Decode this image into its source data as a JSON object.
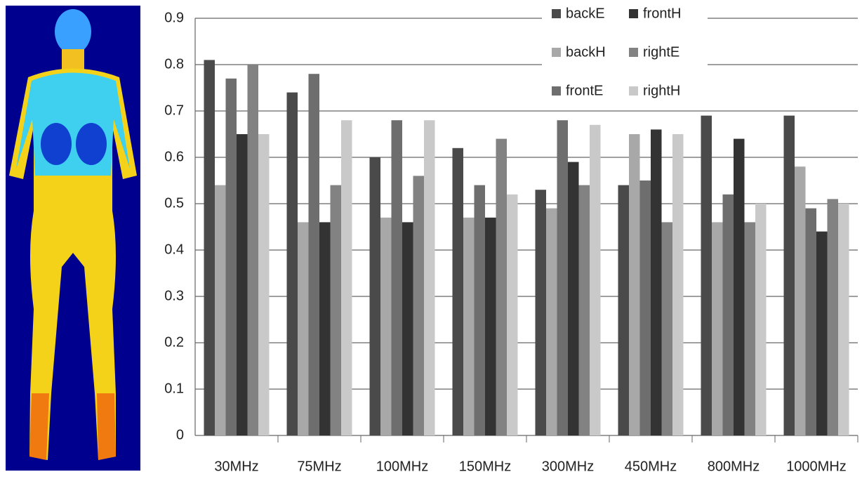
{
  "chart_data": {
    "type": "bar",
    "categories": [
      "30MHz",
      "75MHz",
      "100MHz",
      "150MHz",
      "300MHz",
      "450MHz",
      "800MHz",
      "1000MHz"
    ],
    "series": [
      {
        "name": "backE",
        "color": "#4a4a4a",
        "values": [
          0.81,
          0.74,
          0.6,
          0.62,
          0.53,
          0.54,
          0.69,
          0.69
        ]
      },
      {
        "name": "backH",
        "color": "#a8a8a8",
        "values": [
          0.54,
          0.46,
          0.47,
          0.47,
          0.49,
          0.65,
          0.46,
          0.58
        ]
      },
      {
        "name": "frontE",
        "color": "#6e6e6e",
        "values": [
          0.77,
          0.78,
          0.68,
          0.54,
          0.68,
          0.55,
          0.52,
          0.49
        ]
      },
      {
        "name": "frontH",
        "color": "#333333",
        "values": [
          0.65,
          0.46,
          0.46,
          0.47,
          0.59,
          0.66,
          0.64,
          0.44
        ]
      },
      {
        "name": "rightE",
        "color": "#828282",
        "values": [
          0.8,
          0.54,
          0.56,
          0.64,
          0.54,
          0.46,
          0.46,
          0.51
        ]
      },
      {
        "name": "rightH",
        "color": "#c9c9c9",
        "values": [
          0.65,
          0.68,
          0.68,
          0.52,
          0.67,
          0.65,
          0.5,
          0.5
        ]
      }
    ],
    "ylim": [
      0,
      0.9
    ],
    "yticks": [
      0,
      0.1,
      0.2,
      0.3,
      0.4,
      0.5,
      0.6,
      0.7,
      0.8,
      0.9
    ],
    "grid": true
  }
}
